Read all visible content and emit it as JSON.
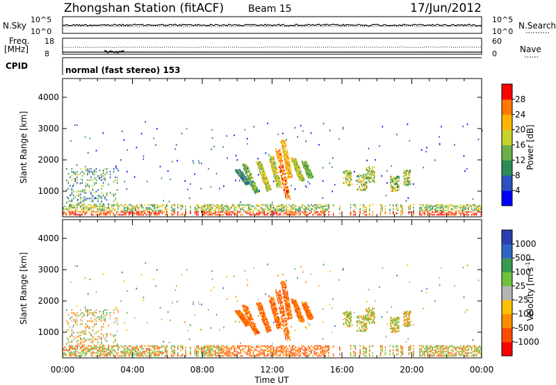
{
  "header": {
    "station": "Zhongshan Station (fitACF)",
    "beam": "Beam 15",
    "date": "17/Jun/2012"
  },
  "top_panel": {
    "left_label": "N.Sky",
    "left_ticks": [
      "10^5",
      "10^0"
    ],
    "right_label": "N.Search",
    "right_ticks": [
      "10^5",
      "10^0"
    ]
  },
  "freq_panel": {
    "left_label_1": "Freq.",
    "left_label_2": "[MHz]",
    "left_ticks": [
      "18",
      "8"
    ],
    "right_ticks": [
      "60",
      "0"
    ],
    "right_label": "Nave",
    "cpid_label": "CPID",
    "mode_text": "normal (fast stereo) 153"
  },
  "chart_data": [
    {
      "type": "heatmap",
      "name": "Power",
      "xlabel": "",
      "ylabel": "Slant Range [km]",
      "x_range_hours": [
        0,
        24
      ],
      "ylim": [
        180,
        4600
      ],
      "y_ticks": [
        1000,
        2000,
        3000,
        4000
      ],
      "colorbar_label": "Power [dB]",
      "colorbar_ticks": [
        4,
        8,
        12,
        16,
        20,
        24,
        28
      ],
      "colorbar_range": [
        0,
        32
      ],
      "colors": [
        "#0000ff",
        "#2a52c0",
        "#2e8b57",
        "#6ab04c",
        "#c8d228",
        "#ffb400",
        "#ff7800",
        "#ff0000"
      ]
    },
    {
      "type": "heatmap",
      "name": "Velocity",
      "xlabel": "Time UT",
      "ylabel": "Slant Range [km]",
      "x_range_hours": [
        0,
        24
      ],
      "x_ticks": [
        "00:00",
        "04:00",
        "08:00",
        "12:00",
        "16:00",
        "20:00",
        "00:00"
      ],
      "ylim": [
        180,
        4600
      ],
      "y_ticks": [
        1000,
        2000,
        3000,
        4000
      ],
      "colorbar_label": "Velocity [m s",
      "colorbar_label_sup": "-1",
      "colorbar_label_end": "]",
      "colorbar_ticks": [
        "1000",
        "500",
        "100",
        "25",
        "-25",
        "-100",
        "-500",
        "-1000"
      ],
      "colors": [
        "#2a3fb0",
        "#2f66c4",
        "#3a9a52",
        "#6cc23c",
        "#b4b4b4",
        "#ffc000",
        "#ff8c00",
        "#ff4b00",
        "#ff0000"
      ]
    }
  ]
}
